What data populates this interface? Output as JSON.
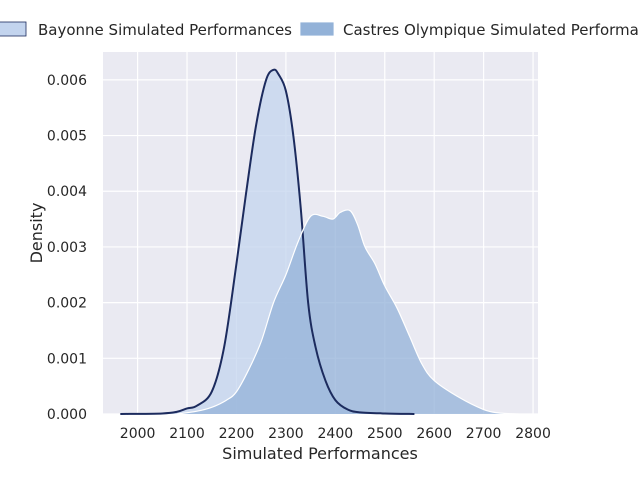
{
  "chart_data": {
    "type": "area",
    "xlabel": "Simulated Performances",
    "ylabel": "Density",
    "xlim": [
      1930,
      2810
    ],
    "ylim": [
      0,
      0.0065
    ],
    "x_ticks": [
      2000,
      2100,
      2200,
      2300,
      2400,
      2500,
      2600,
      2700,
      2800
    ],
    "y_ticks": [
      0.0,
      0.001,
      0.002,
      0.003,
      0.004,
      0.005,
      0.006
    ],
    "y_tick_labels": [
      "0.000",
      "0.001",
      "0.002",
      "0.003",
      "0.004",
      "0.005",
      "0.006"
    ],
    "grid": true,
    "legend_position": "top",
    "background": "#eaeaf2",
    "series": [
      {
        "name": "Bayonne Simulated Performances",
        "fill": "#c3d4ee",
        "line": "#1c2b5e",
        "x": [
          1965,
          2050,
          2080,
          2100,
          2120,
          2150,
          2175,
          2200,
          2220,
          2240,
          2260,
          2275,
          2285,
          2300,
          2315,
          2330,
          2345,
          2360,
          2380,
          2400,
          2425,
          2450,
          2500,
          2560
        ],
        "y": [
          0.0,
          1e-05,
          4e-05,
          0.0001,
          0.00015,
          0.0004,
          0.0012,
          0.0027,
          0.004,
          0.0052,
          0.006,
          0.00618,
          0.0061,
          0.0058,
          0.005,
          0.0037,
          0.002,
          0.0012,
          0.0006,
          0.00025,
          8e-05,
          3e-05,
          1e-05,
          0.0
        ]
      },
      {
        "name": "Castres Olympique Simulated Performances",
        "fill": "#93b2d8",
        "line": "#ffffff",
        "x": [
          2080,
          2120,
          2150,
          2180,
          2200,
          2225,
          2250,
          2275,
          2300,
          2325,
          2350,
          2375,
          2395,
          2410,
          2430,
          2445,
          2460,
          2480,
          2500,
          2525,
          2550,
          2575,
          2600,
          2650,
          2700,
          2730,
          2770
        ],
        "y": [
          0.0,
          5e-05,
          0.00012,
          0.00025,
          0.0004,
          0.0008,
          0.0013,
          0.002,
          0.0025,
          0.0031,
          0.00355,
          0.00355,
          0.0035,
          0.00362,
          0.00365,
          0.0034,
          0.003,
          0.0027,
          0.0023,
          0.0019,
          0.0014,
          0.0009,
          0.0006,
          0.0003,
          8e-05,
          2e-05,
          0.0
        ]
      }
    ]
  }
}
